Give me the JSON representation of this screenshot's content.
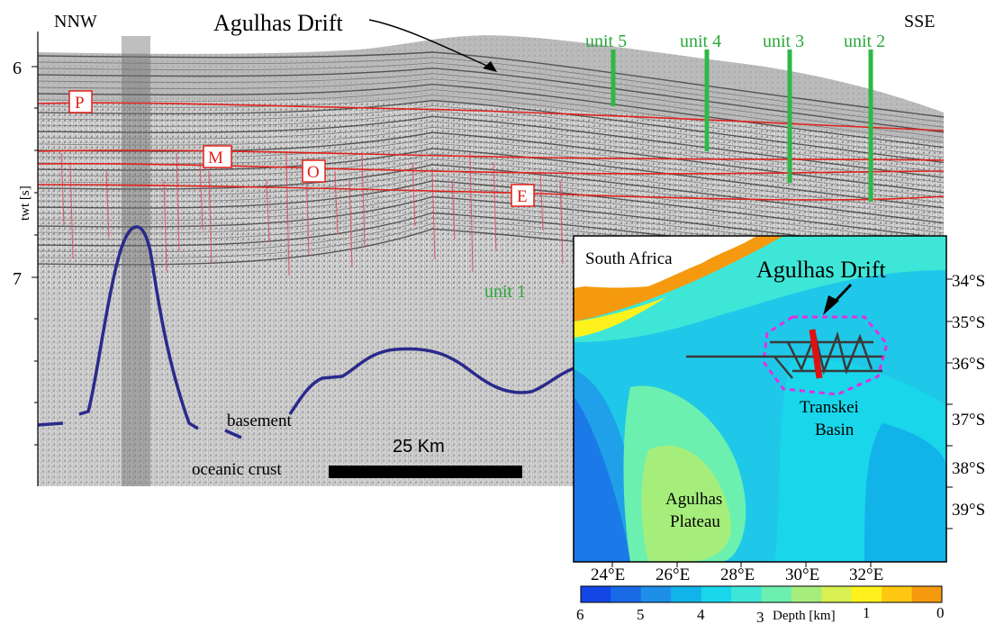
{
  "profile": {
    "left_direction": "NNW",
    "right_direction": "SSE",
    "drift_title": "Agulhas Drift",
    "yaxis_label": "twt [s]",
    "yticks": [
      "6",
      "7"
    ],
    "units": [
      "unit 5",
      "unit 4",
      "unit 3",
      "unit 2",
      "unit 1"
    ],
    "reflectors": [
      "P",
      "M",
      "O",
      "E"
    ],
    "basement_label": "basement",
    "crust_label": "oceanic crust",
    "scale_label": "25 Km",
    "colors": {
      "reflector": "#e0221c",
      "basement": "#2a2a8c",
      "unit_text": "#2aa83a",
      "unit_bar": "#2eb846",
      "fault": "#e0556a"
    }
  },
  "map": {
    "region_label": "South Africa",
    "drift_label": "Agulhas Drift",
    "basin_label": [
      "Transkei",
      "Basin"
    ],
    "plateau_label": [
      "Agulhas",
      "Plateau"
    ],
    "lat_labels": [
      "34°S",
      "35°S",
      "36°S",
      "37°S",
      "38°S",
      "39°S"
    ],
    "lon_labels": [
      "24°E",
      "26°E",
      "28°E",
      "30°E",
      "32°E"
    ],
    "colorbar_ticks": [
      "6",
      "5",
      "4",
      "3",
      "1",
      "0"
    ],
    "colorbar_label": "Depth [km]",
    "colorbar_colors": [
      "#1247e6",
      "#1a6ae8",
      "#1f8ee8",
      "#12b3e8",
      "#19d6ea",
      "#3ee6d8",
      "#6cf0b0",
      "#a6ee7c",
      "#d8f050",
      "#fff21c",
      "#ffc712",
      "#f59a0e"
    ],
    "colors": {
      "drift_outline": "#e030e0",
      "track": "#3a3a3a",
      "profile_line": "#e01010"
    }
  }
}
